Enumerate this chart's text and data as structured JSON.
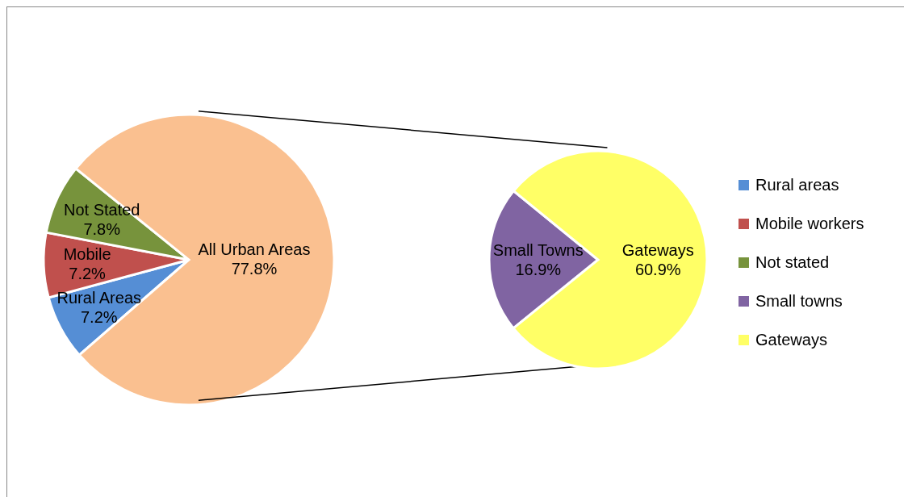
{
  "chart_data": [
    {
      "type": "pie",
      "categories": [
        "Rural areas",
        "Mobile workers",
        "Not stated",
        null
      ],
      "values": [
        7.2,
        7.2,
        7.8,
        77.8
      ],
      "colors": [
        "#558ed5",
        "#c0504d",
        "#77933c",
        "#fac090"
      ],
      "value_labels": [
        "Rural Areas\n7.2%",
        "Mobile\n7.2%",
        "Not Stated\n7.8%",
        "All Urban Areas\n77.8%"
      ],
      "legend": "right"
    },
    {
      "type": "pie",
      "categories": [
        "Small towns",
        "Gateways"
      ],
      "values": [
        16.9,
        60.9
      ],
      "colors": [
        "#8064a2",
        "#ffff66"
      ],
      "value_labels": [
        "Small Towns\n16.9%",
        "Gateways\n60.9%"
      ],
      "legend": "right"
    }
  ]
}
